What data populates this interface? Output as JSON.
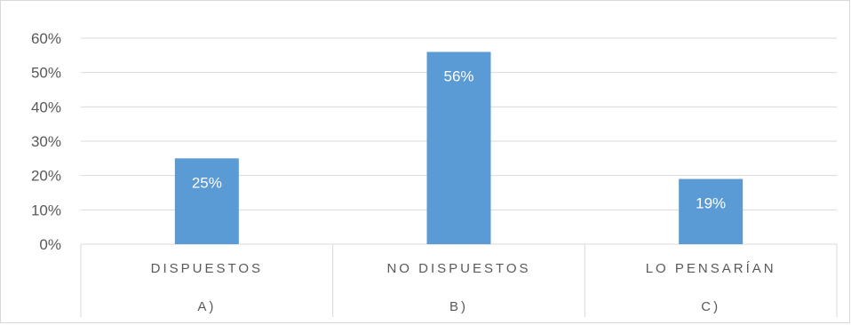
{
  "chart_data": {
    "type": "bar",
    "categories": [
      "DISPUESTOS",
      "NO DISPUESTOS",
      "LO PENSARÍAN"
    ],
    "group_labels": [
      "A)",
      "B)",
      "C)"
    ],
    "values": [
      25,
      56,
      19
    ],
    "data_labels": [
      "25%",
      "56%",
      "19%"
    ],
    "y_ticks": [
      0,
      10,
      20,
      30,
      40,
      50,
      60
    ],
    "y_tick_labels": [
      "0%",
      "10%",
      "20%",
      "30%",
      "40%",
      "50%",
      "60%"
    ],
    "ylim": [
      0,
      60
    ],
    "grid": true,
    "bar_color": "#5b9bd5",
    "grid_color": "#d9d9d9",
    "label_color": "#595959"
  }
}
